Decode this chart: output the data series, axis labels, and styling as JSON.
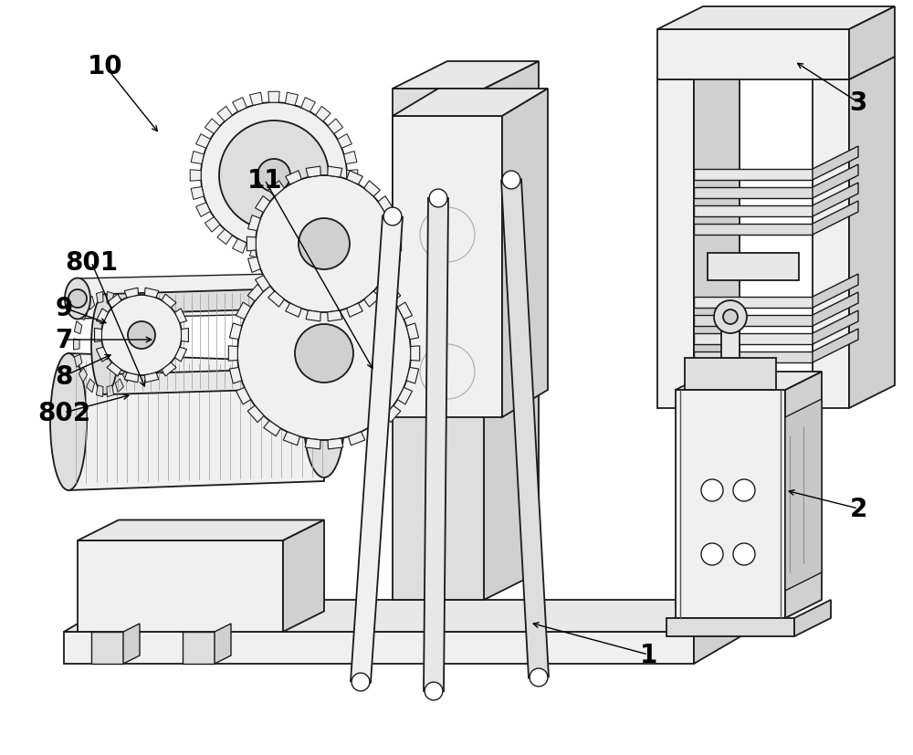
{
  "bg_color": "#ffffff",
  "lc": "#1a1a1a",
  "fill_white": "#ffffff",
  "fill_very_light": "#f0f0f0",
  "fill_light": "#e8e8e8",
  "fill_mid_light": "#dedede",
  "fill_mid": "#d0d0d0",
  "fill_dark": "#b8b8b8",
  "fill_darker": "#a0a0a0",
  "figsize": [
    10.0,
    8.28
  ],
  "dpi": 100
}
